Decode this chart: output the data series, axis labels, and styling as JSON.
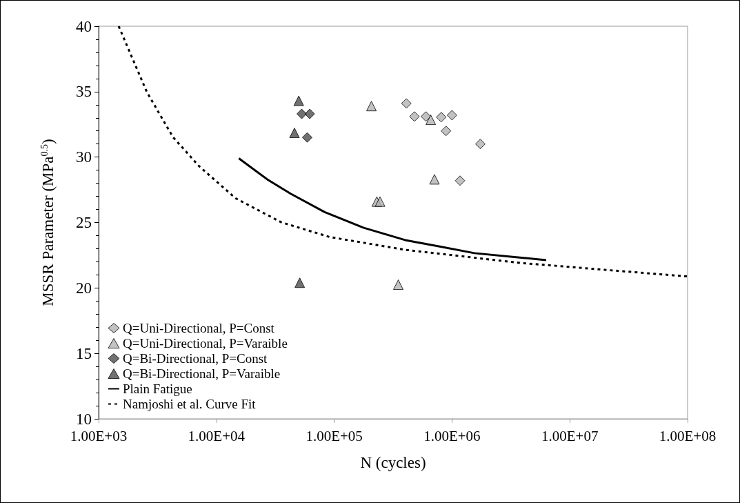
{
  "chart_data": {
    "type": "scatter",
    "xlabel": "N (cycles)",
    "ylabel": "MSSR Parameter (MPa$^{0.5}$)",
    "log": "x",
    "xlim": [
      1000,
      100000000
    ],
    "xticks": [
      {
        "value": 1000,
        "label": "1.00E+03"
      },
      {
        "value": 10000,
        "label": "1.00E+04"
      },
      {
        "value": 100000,
        "label": "1.00E+05"
      },
      {
        "value": 1000000,
        "label": "1.00E+06"
      },
      {
        "value": 10000000,
        "label": "1.00E+07"
      },
      {
        "value": 100000000,
        "label": "1.00E+08"
      }
    ],
    "ylim": [
      10,
      40
    ],
    "yticks": [
      10,
      15,
      20,
      25,
      30,
      35,
      40
    ],
    "grid": false,
    "legend": "bottom left",
    "series": [
      {
        "name": "Q=Uni-Directional, P=Const",
        "marker": "diamond",
        "color": "#b3b3b3",
        "x": [
          410000,
          480000,
          600000,
          810000,
          1000000,
          890000,
          1740000,
          1170000
        ],
        "values": [
          34.1,
          33.1,
          33.1,
          33.05,
          33.2,
          32.0,
          31.0,
          28.2
        ]
      },
      {
        "name": "Q=Uni-Directional, P=Varaible",
        "marker": "triangle",
        "color": "#b3b3b3",
        "x": [
          207000,
          660000,
          710000,
          230000,
          245000,
          350000
        ],
        "values": [
          33.9,
          32.85,
          28.3,
          26.6,
          26.6,
          20.25
        ]
      },
      {
        "name": "Q=Bi-Directional, P=Const",
        "marker": "diamond",
        "color": "#4d4d4d",
        "x": [
          53000,
          62000,
          59000
        ],
        "values": [
          33.3,
          33.3,
          31.5
        ]
      },
      {
        "name": "Q=Bi-Directional, P=Varaible",
        "marker": "triangle",
        "color": "#4d4d4d",
        "x": [
          50000,
          46000,
          51000
        ],
        "values": [
          34.3,
          31.85,
          20.4
        ]
      },
      {
        "name": "Plain Fatigue",
        "type": "line",
        "line_style": "solid",
        "color": "#000000",
        "x": [
          15500,
          27000,
          42700,
          83000,
          178000,
          400000,
          800000,
          1550000,
          3500000,
          6300000
        ],
        "values": [
          29.9,
          28.3,
          27.2,
          25.8,
          24.6,
          23.66,
          23.15,
          22.66,
          22.35,
          22.13
        ]
      },
      {
        "name": "Namjoshi et al. Curve Fit",
        "type": "line",
        "line_style": "dashed",
        "color": "#000000",
        "x": [
          1480,
          2570,
          4270,
          7080,
          14500,
          35500,
          91000,
          398000,
          3720000,
          26900000,
          100000000
        ],
        "values": [
          40,
          34.96,
          31.54,
          29.33,
          26.86,
          25.02,
          23.9,
          22.92,
          21.92,
          21.29,
          20.88
        ]
      }
    ]
  }
}
